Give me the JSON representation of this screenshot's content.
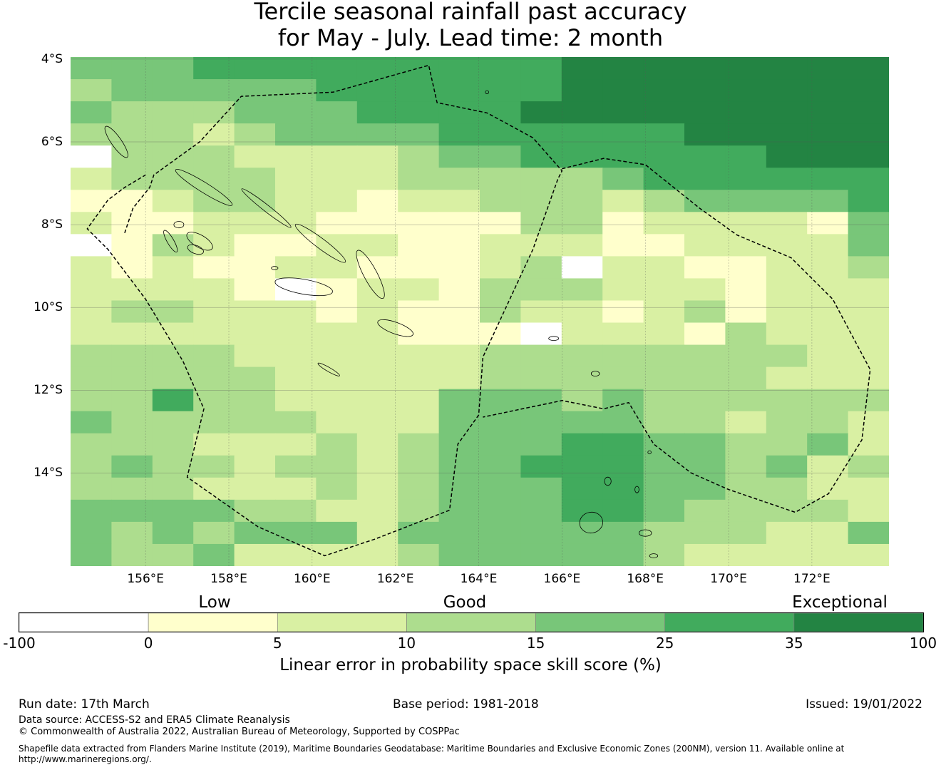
{
  "title": {
    "line1": "Tercile seasonal rainfall past accuracy",
    "line2": "for May - July. Lead time: 2 month"
  },
  "map": {
    "lat_labels": [
      "4°S",
      "6°S",
      "8°S",
      "10°S",
      "12°S",
      "14°S"
    ],
    "lat_values": [
      -4,
      -6,
      -8,
      -10,
      -12,
      -14
    ],
    "lon_labels": [
      "156°E",
      "158°E",
      "160°E",
      "162°E",
      "164°E",
      "166°E",
      "168°E",
      "170°E",
      "172°E"
    ],
    "lon_values": [
      156,
      158,
      160,
      162,
      164,
      166,
      168,
      170,
      172
    ],
    "lon_range": [
      154.2,
      173.85
    ],
    "lat_range": [
      -16.25,
      -3.95
    ],
    "grid_rows": [
      "44455555555566666666",
      "34444455555566666666",
      "43334445555666666666",
      "33323444455555566666",
      "03332222344555555666",
      "23333222333334555555",
      "11233221223332344445",
      "21122211111331222214",
      "01321122112221122224",
      "21211221112302211223",
      "22221012213332221222",
      "23322212113221231222",
      "22222222111022213222",
      "33332222223333333322",
      "33333222223333333222",
      "33533222244434333333",
      "43333322244444332332",
      "33322232344455443342",
      "34332332344555443423",
      "33322232344455443322",
      "44443322344455433332",
      "43434442444444333224",
      "43342222344444322222"
    ]
  },
  "legend": {
    "categories": [
      "Low",
      "Good",
      "Exceptional"
    ],
    "ticks": [
      "-100",
      "0",
      "5",
      "10",
      "15",
      "25",
      "35",
      "100"
    ],
    "colors": [
      "#ffffff",
      "#ffffcc",
      "#d9f0a3",
      "#addd8e",
      "#78c679",
      "#41ab5d",
      "#238443"
    ],
    "label": "Linear error in probability space skill score (%)"
  },
  "footer": {
    "run_date": "Run date: 17th March",
    "base_period": "Base period: 1981-2018",
    "issued": "Issued: 19/01/2022",
    "data_source": "Data source: ACCESS-S2 and ERA5 Climate Reanalysis",
    "copyright": "© Commonwealth of Australia 2022, Australian Bureau of Meteorology, Supported by COSPPac",
    "shapefile_line1": "Shapefile data extracted from Flanders Marine Institute (2019), Maritime Boundaries Geodatabase: Maritime Boundaries and Exclusive Economic Zones (200NM), version 11. Available online at",
    "shapefile_line2": "http://www.marineregions.org/."
  }
}
